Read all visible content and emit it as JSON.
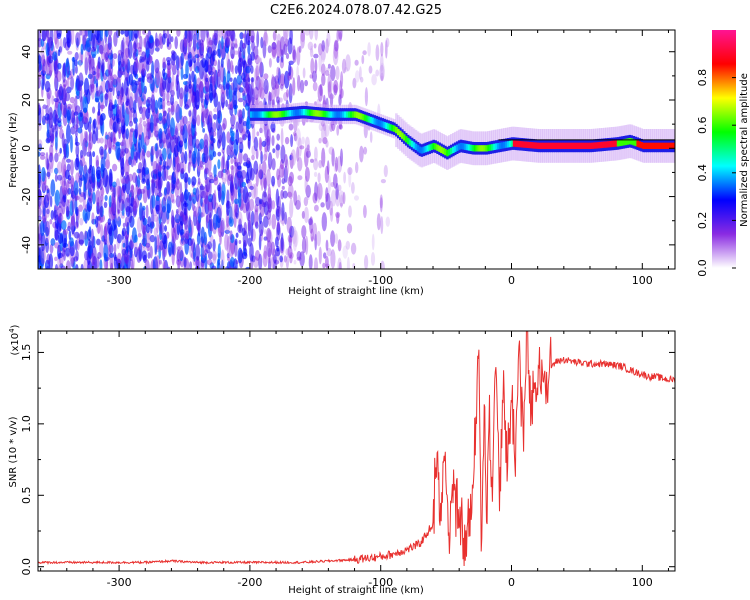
{
  "title": "C2E6.2024.078.07.42.G25",
  "chart_data": [
    {
      "type": "heatmap",
      "xlabel": "Height of straight line (km)",
      "ylabel": "Frequency (Hz)",
      "xlim": [
        -362,
        125
      ],
      "ylim": [
        -50,
        49
      ],
      "xticks": [
        -300,
        -200,
        -100,
        0,
        100
      ],
      "xtick_labels": [
        "-300",
        "-200",
        "-100",
        "0",
        "100"
      ],
      "yticks": [
        -40,
        -20,
        0,
        20,
        40
      ],
      "ytick_labels": [
        "-40",
        "-20",
        "0",
        "20",
        "40"
      ],
      "colorbar": {
        "label": "Normalized spectral amplitude",
        "range": [
          0,
          1
        ],
        "ticks": [
          0.0,
          0.2,
          0.4,
          0.6,
          0.8
        ],
        "tick_labels": [
          "0.0",
          "0.2",
          "0.4",
          "0.6",
          "0.8"
        ],
        "colors": [
          "#ffffff",
          "#8a2be2",
          "#0000ff",
          "#00ffff",
          "#00ff00",
          "#ffff00",
          "#ff0000",
          "#ff1493"
        ]
      },
      "ridge": {
        "x": [
          -200,
          -180,
          -160,
          -140,
          -120,
          -110,
          -100,
          -90,
          -80,
          -70,
          -60,
          -50,
          -40,
          -30,
          -20,
          -10,
          0,
          20,
          40,
          60,
          80,
          90,
          100,
          125
        ],
        "y": [
          14,
          14,
          15,
          14,
          14,
          12,
          10,
          8,
          3,
          -1,
          1,
          -2,
          1,
          0,
          0,
          1,
          2,
          1,
          1,
          1,
          2,
          3,
          1,
          1
        ]
      }
    },
    {
      "type": "line",
      "xlabel": "Height of straight line (km)",
      "ylabel": "SNR (10 * v/v)",
      "y_multiplier": "(x10",
      "y_multiplier_exp": "4",
      "y_multiplier_close": ")",
      "xlim": [
        -362,
        125
      ],
      "ylim": [
        -0.03,
        1.65
      ],
      "xticks": [
        -300,
        -200,
        -100,
        0,
        100
      ],
      "xtick_labels": [
        "-300",
        "-200",
        "-100",
        "0",
        "100"
      ],
      "yticks": [
        0.0,
        0.5,
        1.0,
        1.5
      ],
      "ytick_labels": [
        "0.0",
        "0.5",
        "1.0",
        "1.5"
      ],
      "series": [
        {
          "color": "#e8312f",
          "x": [
            -362,
            -340,
            -320,
            -300,
            -280,
            -260,
            -240,
            -220,
            -200,
            -180,
            -160,
            -140,
            -120,
            -110,
            -100,
            -90,
            -80,
            -70,
            -60,
            -57,
            -54,
            -51,
            -48,
            -45,
            -40,
            -35,
            -30,
            -27,
            -25,
            -23,
            -21,
            -19,
            -17,
            -15,
            -12,
            -9,
            -6,
            -3,
            0,
            3,
            6,
            9,
            12,
            15,
            20,
            25,
            30,
            35,
            40,
            50,
            60,
            70,
            80,
            85,
            90,
            95,
            100,
            105,
            110,
            115,
            120,
            125
          ],
          "y": [
            0.03,
            0.03,
            0.03,
            0.03,
            0.03,
            0.04,
            0.03,
            0.03,
            0.03,
            0.03,
            0.03,
            0.04,
            0.05,
            0.06,
            0.07,
            0.09,
            0.12,
            0.16,
            0.3,
            0.85,
            0.35,
            0.8,
            0.25,
            0.55,
            0.3,
            0.15,
            0.45,
            1.0,
            1.65,
            0.05,
            1.2,
            0.4,
            1.1,
            0.5,
            1.45,
            0.6,
            1.3,
            0.7,
            1.2,
            0.8,
            1.55,
            0.9,
            1.6,
            1.05,
            1.3,
            1.35,
            1.4,
            1.44,
            1.45,
            1.43,
            1.42,
            1.42,
            1.41,
            1.4,
            1.38,
            1.36,
            1.35,
            1.33,
            1.33,
            1.32,
            1.31,
            1.31
          ]
        }
      ]
    }
  ]
}
